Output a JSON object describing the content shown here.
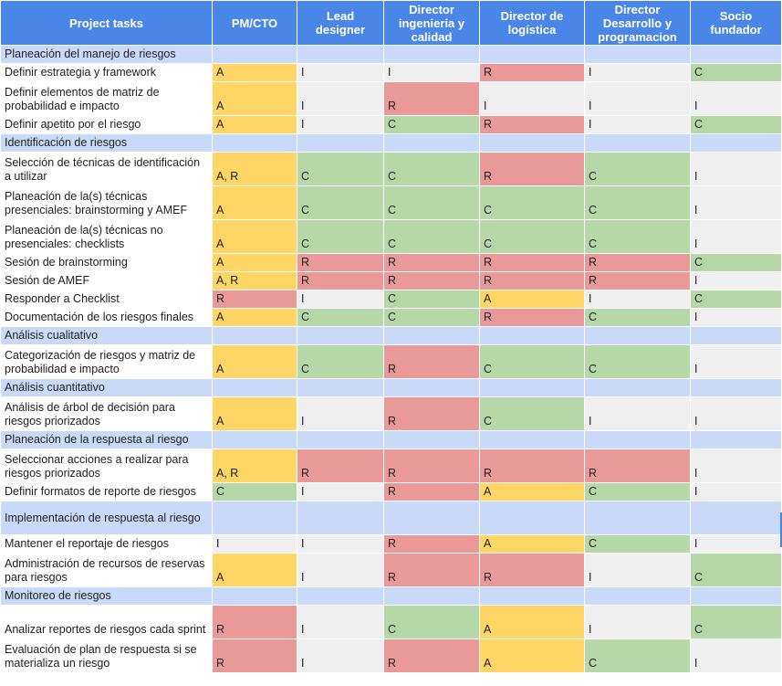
{
  "headers": [
    "Project tasks",
    "PM/CTO",
    "Lead designer",
    "Director ingenieria y calidad",
    "Director de logística",
    "Director Desarrollo y programacion",
    "Socio fundador"
  ],
  "sections": [
    {
      "title": "Planeación del manejo de riesgos",
      "tasks": [
        {
          "name": "Definir estrategia y framework",
          "cells": [
            "A",
            "I",
            "I",
            "R",
            "I",
            "C"
          ],
          "colors": [
            "A",
            "I",
            "I",
            "R",
            "I",
            "C"
          ]
        },
        {
          "name": "Definir elementos de matriz de probabilidad e impacto",
          "cells": [
            "A",
            "I",
            "R",
            "I",
            "I",
            "I"
          ],
          "colors": [
            "A",
            "I",
            "R",
            "I",
            "I",
            "I"
          ]
        },
        {
          "name": "Definir apetito por el riesgo",
          "cells": [
            "A",
            "I",
            "C",
            "R",
            "I",
            "C"
          ],
          "colors": [
            "A",
            "I",
            "C",
            "R",
            "I",
            "C"
          ]
        }
      ]
    },
    {
      "title": "Identificación de riesgos",
      "tasks": [
        {
          "name": "Selección de técnicas de identificación a utilizar",
          "cells": [
            "A, R",
            "C",
            "C",
            "R",
            "C",
            "I"
          ],
          "colors": [
            "A",
            "C",
            "C",
            "R",
            "C",
            "I"
          ]
        },
        {
          "name": "Planeación de la(s) técnicas presenciales: brainstorming y AMEF",
          "cells": [
            "A",
            "C",
            "C",
            "C",
            "C",
            "I"
          ],
          "colors": [
            "A",
            "C",
            "C",
            "C",
            "C",
            "I"
          ]
        },
        {
          "name": "Planeación de la(s) técnicas no presenciales: checklists",
          "cells": [
            "A",
            "C",
            "C",
            "C",
            "C",
            "I"
          ],
          "colors": [
            "A",
            "C",
            "C",
            "C",
            "C",
            "I"
          ]
        },
        {
          "name": "Sesión de brainstorming",
          "cells": [
            "A",
            "R",
            "R",
            "R",
            "R",
            "C"
          ],
          "colors": [
            "A",
            "R",
            "R",
            "R",
            "R",
            "C"
          ]
        },
        {
          "name": "Sesión de AMEF",
          "cells": [
            "A, R",
            "R",
            "R",
            "R",
            "R",
            "I"
          ],
          "colors": [
            "A",
            "R",
            "R",
            "R",
            "R",
            "I"
          ]
        },
        {
          "name": "Responder a Checklist",
          "cells": [
            "R",
            "I",
            "C",
            "A",
            "I",
            "C"
          ],
          "colors": [
            "R",
            "I",
            "C",
            "A",
            "I",
            "C"
          ]
        },
        {
          "name": "Documentación de los riesgos finales",
          "cells": [
            "A",
            "C",
            "C",
            "R",
            "C",
            "I"
          ],
          "colors": [
            "A",
            "C",
            "C",
            "R",
            "C",
            "I"
          ]
        }
      ]
    },
    {
      "title": "Análisis cualitativo",
      "tasks": [
        {
          "name": "Categorización de riesgos y matriz de probabilidad e impacto",
          "cells": [
            "A",
            "C",
            "R",
            "C",
            "C",
            "I"
          ],
          "colors": [
            "A",
            "C",
            "R",
            "C",
            "C",
            "I"
          ]
        }
      ]
    },
    {
      "title": "Análisis cuantitativo",
      "tasks": [
        {
          "name": "Análisis de árbol de decisión para riesgos priorizados",
          "cells": [
            "A",
            "I",
            "R",
            "C",
            "I",
            "I"
          ],
          "colors": [
            "A",
            "I",
            "R",
            "C",
            "I",
            "I"
          ]
        }
      ]
    },
    {
      "title": "Planeación de la respuesta al riesgo",
      "tasks": [
        {
          "name": "Seleccionar acciones a realizar para riesgos priorizados",
          "cells": [
            "A, R",
            "R",
            "R",
            "R",
            "R",
            "I"
          ],
          "colors": [
            "A",
            "R",
            "R",
            "R",
            "R",
            "I"
          ]
        },
        {
          "name": "Definir formatos de reporte de riesgos",
          "cells": [
            "C",
            "I",
            "R",
            "A",
            "C",
            "I"
          ],
          "colors": [
            "C",
            "I",
            "R",
            "A",
            "C",
            "I"
          ]
        }
      ]
    },
    {
      "title": "Implementación de respuesta al riesgo",
      "tasks": [
        {
          "name": "Mantener el reportaje de riesgos",
          "cells": [
            "I",
            "I",
            "R",
            "A",
            "C",
            "I"
          ],
          "colors": [
            "I",
            "I",
            "R",
            "A",
            "C",
            "I"
          ]
        },
        {
          "name": "Administración de recursos de reservas para riesgos",
          "cells": [
            "A",
            "I",
            "R",
            "R",
            "I",
            "C"
          ],
          "colors": [
            "A",
            "I",
            "R",
            "R",
            "I",
            "C"
          ]
        }
      ]
    },
    {
      "title": "Monitoreo de riesgos",
      "tasks": [
        {
          "name": "Analizar reportes de riesgos cada sprint",
          "cells": [
            "R",
            "I",
            "C",
            "A",
            "I",
            "C"
          ],
          "colors": [
            "R",
            "I",
            "C",
            "A",
            "I",
            "C"
          ]
        },
        {
          "name": "Evaluación de plan de respuesta si se materializa un riesgo",
          "cells": [
            "R",
            "I",
            "R",
            "A",
            "C",
            "I"
          ],
          "colors": [
            "R",
            "I",
            "R",
            "A",
            "C",
            "I"
          ]
        }
      ]
    }
  ],
  "colors": {
    "header": "#4a86e8",
    "section": "#c9daf8",
    "A": "#ffd666",
    "R": "#ea9999",
    "C": "#b6d7a8",
    "I": "#efefef"
  }
}
